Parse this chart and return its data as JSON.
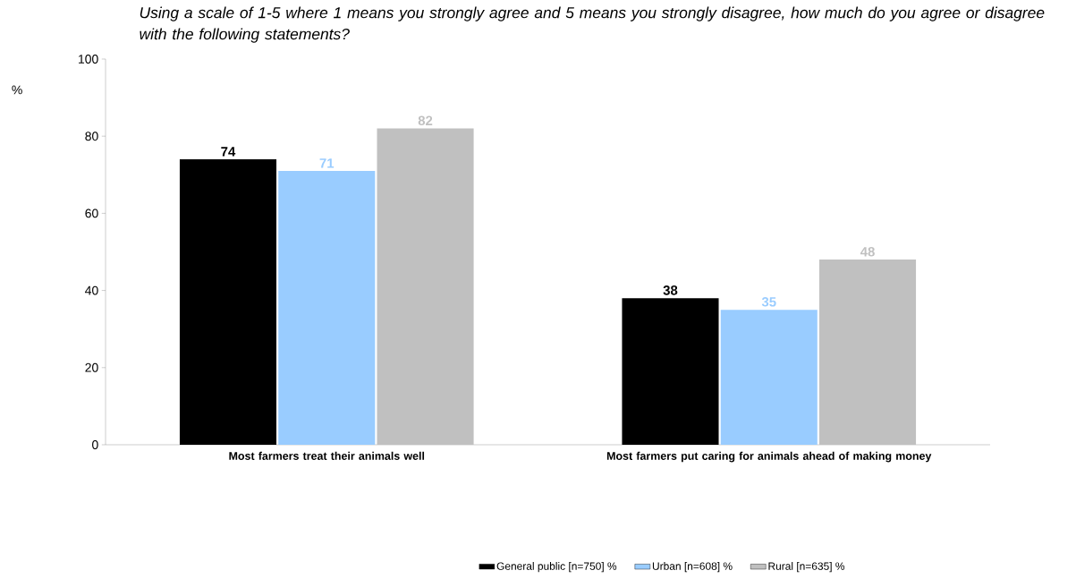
{
  "chart_data": {
    "type": "bar",
    "title": "Using a scale of 1-5 where 1 means you strongly agree and 5 means you strongly disagree, how much do you agree or disagree with the following statements?",
    "ylabel": "%",
    "categories": [
      "Most farmers treat their animals well",
      "Most farmers put caring for animals ahead of making money"
    ],
    "series": [
      {
        "name": "General public [n=750] %",
        "color": "#000000",
        "values": [
          74,
          38
        ]
      },
      {
        "name": "Urban [n=608] %",
        "color": "#99ccff",
        "values": [
          71,
          35
        ]
      },
      {
        "name": "Rural  [n=635] %",
        "color": "#c0c0c0",
        "values": [
          82,
          48
        ]
      }
    ],
    "ylim": [
      0,
      100
    ],
    "yticks": [
      0,
      20,
      40,
      60,
      80,
      100
    ],
    "data_labels": true,
    "grid": false,
    "legend": "bottom"
  }
}
